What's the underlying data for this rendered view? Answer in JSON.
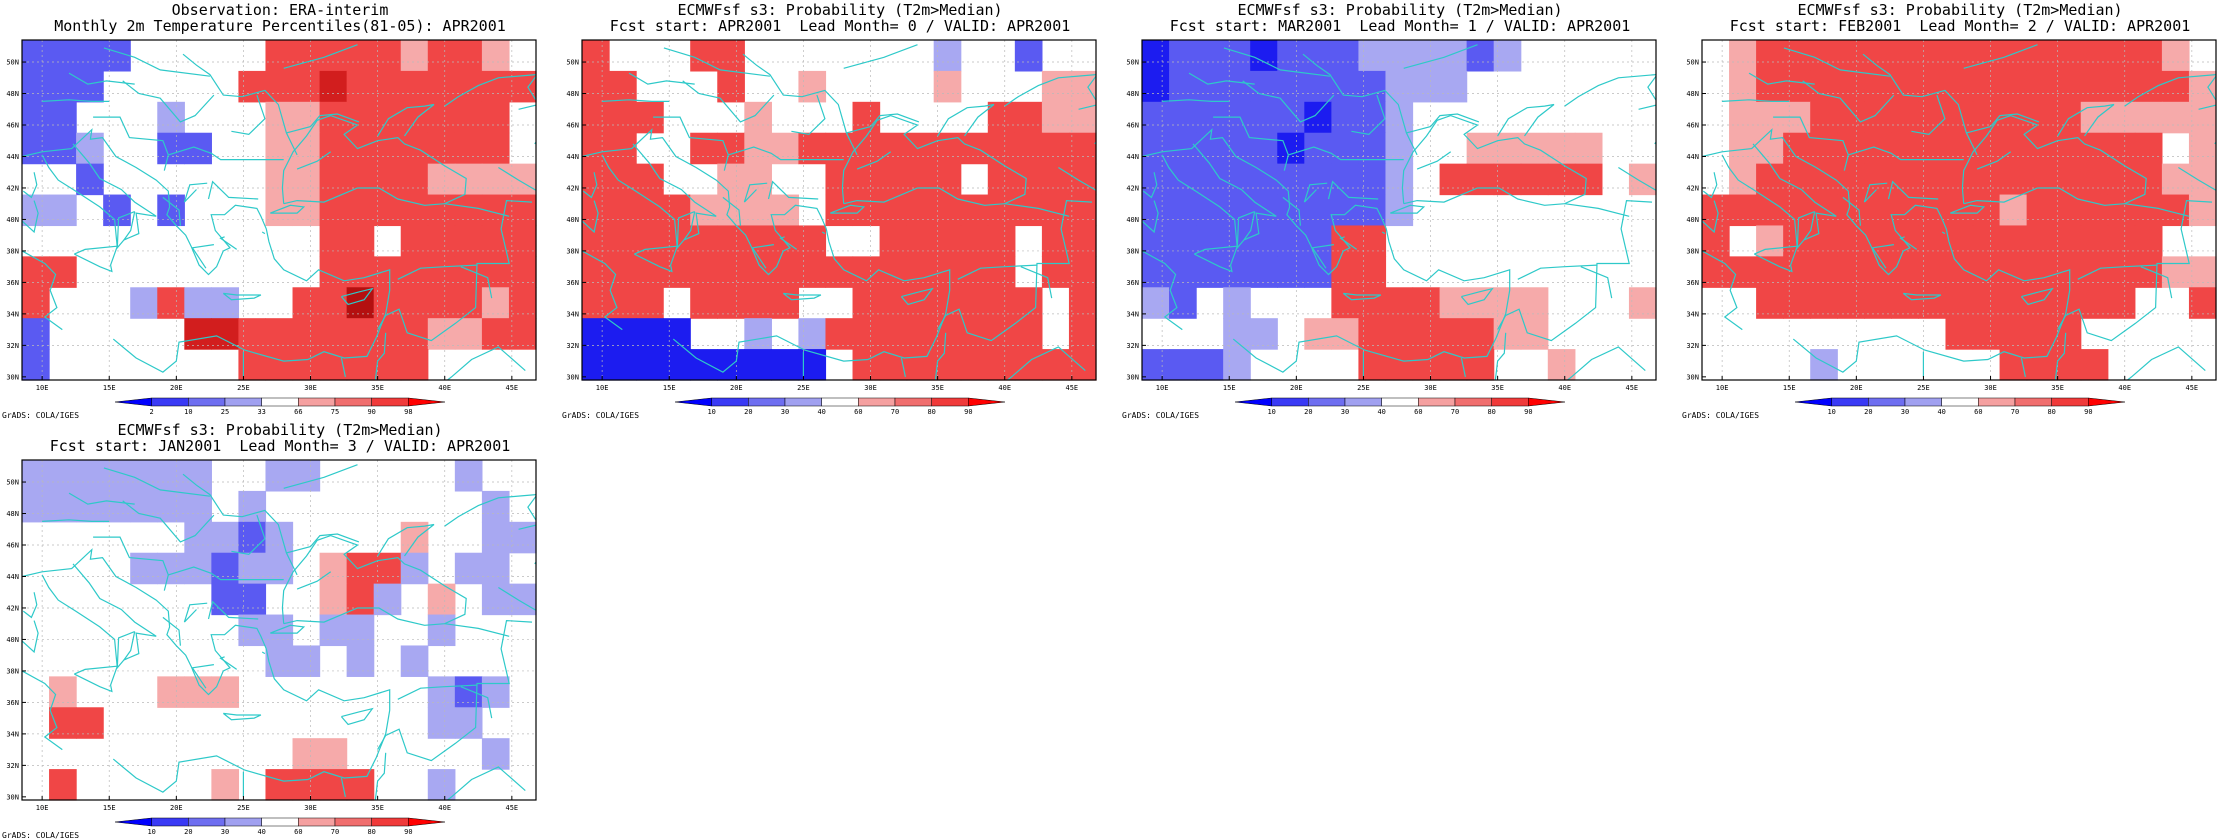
{
  "x_ticks": [
    "10E",
    "15E",
    "20E",
    "25E",
    "30E",
    "35E",
    "40E",
    "45E"
  ],
  "y_ticks": [
    "50N",
    "48N",
    "46N",
    "44N",
    "42N",
    "40N",
    "38N",
    "36N",
    "34N",
    "32N",
    "30N"
  ],
  "credit": "GrADS: COLA/IGES",
  "palette": {
    "obs_labels": [
      "2",
      "10",
      "25",
      "33",
      "66",
      "75",
      "90",
      "98"
    ],
    "prob_labels": [
      "10",
      "20",
      "30",
      "40",
      "60",
      "70",
      "80",
      "90"
    ]
  },
  "panels": [
    {
      "title_line1": "Observation: ERA-interim",
      "title_line2": "Monthly 2m Temperature Percentiles(81-05): APR2001",
      "scale": "obs",
      "grid": [
        "bbbb.....rrrrr,rr,.",
        "bbb.....rrrsrrrrrrr",
        "bb...m...,,rrrrrrr.",
        "bbm..bb..,,rrrrrrr.",
        "..b......,,rrrr,,,,",
        "mm.b.b...,,rrrrrrrr",
        "...........rr.rrrrr",
        "rr.........rrrrrrrr",
        "r...mrmm..rrtrrrr,r",
        "b.....ssrrrrrrr,,rr",
        "b.......rrrrrrr...."
      ]
    },
    {
      "title_line1": "ECMWFsf s3: Probability (T2m>Median)",
      "title_line2": "Fcst start: APR2001  Lead Month= 0 / VALID: APR2001",
      "scale": "prob",
      "grid": [
        "r...rr.......m..b..",
        "rr...r..,....,...,,",
        "rrr...,...r....rr,,",
        "rr..rr,,rrrrrrrrrrr",
        "rrr..,,..rrrrr.rrrr",
        "rrrr,,,,.rrrrrrrrrr",
        "rrrrrrrrr..rrrrr.rr",
        "rrrrrrrrrrrrrrrr.rr",
        "rrr.rrrr..rrrrrrr.r",
        "BBBB..m.mrrrrrrrr.r",
        "BBBBBBBBB.rrrrrrrrr"
      ]
    },
    {
      "title_line1": "ECMWFsf s3: Probability (T2m>Median)",
      "title_line2": "Fcst start: MAR2001  Lead Month= 1 / VALID: APR2001",
      "scale": "prob",
      "grid": [
        "BbbbBbbbmmmmbm.....",
        "Bbbbbbbbbmmm.......",
        "bbbbbbBbbm.........",
        "bbbbbBbbbm..,,,,,..",
        "bbbbbbbbbm.rrrrrr.,",
        "bbbbbbbbbm.........",
        "bbbbbbbrr..........",
        "bbbbbbbrr..........",
        "mb.m...rrrr,,,,...,",
        "...mm.,,rrrrr,,....",
        "bbbm....rrrrr..,..."
      ]
    },
    {
      "title_line1": "ECMWFsf s3: Probability (T2m>Median)",
      "title_line2": "Fcst start: FEB2001  Lead Month= 2 / VALID: APR2001",
      "scale": "prob",
      "grid": [
        ".,rrrrrrrrrrrrrrr,.",
        ".,rrrrrrrrrrrrrrrr,",
        ".,,,rrrrrrrrrr,,,,,",
        ".,,rrrrrrrrrrrrrr.,",
        ".,rrrrrrrrrrrrrrr,,",
        "rrrrrrrrrrr,rrrrrr,",
        "r.,rrrrrrrrrrrrrr..",
        "rrrrrrrrrrrrrrrrr,,",
        "..rrrrrrrrrrrrrr..r",
        ".........rrrrr.....",
        "....m......rrrr...."
      ]
    },
    {
      "title_line1": "ECMWFsf s3: Probability (T2m>Median)",
      "title_line2": "Fcst start: JAN2001  Lead Month= 3 / VALID: APR2001",
      "scale": "prob",
      "grid": [
        "mmmmmmm..mm.....m..",
        "mmmmmmm.m........m.",
        "......mmbm....,..mm",
        "....mmmbmm.,rrm.mm.",
        ".......bb..,rm.,.mm",
        "........mm.mm..m...",
        ".........mm.m.m....",
        ".,...,,,.......mbm.",
        ".rr............mm..",
        "..........,,.....m.",
        ".r.....,.rrrr..m..."
      ]
    }
  ]
}
